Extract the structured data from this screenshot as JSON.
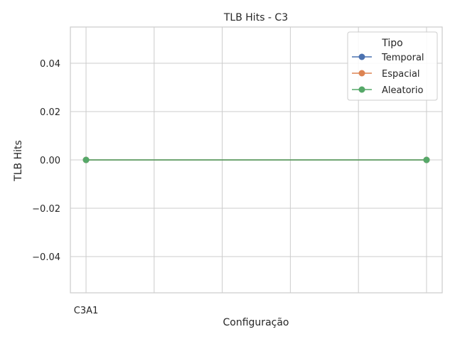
{
  "chart_data": {
    "type": "line",
    "title": "TLB Hits - C3",
    "xlabel": "Configuração",
    "ylabel": "TLB Hits",
    "x_tick_labels": [
      "C3A1"
    ],
    "x_points": [
      0,
      5
    ],
    "xlim": [
      -0.23,
      5.23
    ],
    "ylim": [
      -0.055,
      0.055
    ],
    "y_ticks": [
      -0.04,
      -0.02,
      0.0,
      0.02,
      0.04
    ],
    "y_tick_labels": [
      "−0.04",
      "−0.02",
      "0.00",
      "0.02",
      "0.04"
    ],
    "grid": true,
    "legend": {
      "title": "Tipo",
      "placement": "top-right"
    },
    "series": [
      {
        "name": "Temporal",
        "color": "#4c72b0",
        "values": [
          0,
          0
        ]
      },
      {
        "name": "Espacial",
        "color": "#dd8452",
        "values": [
          0,
          0
        ]
      },
      {
        "name": "Aleatorio",
        "color": "#55a868",
        "values": [
          0,
          0
        ]
      }
    ]
  }
}
